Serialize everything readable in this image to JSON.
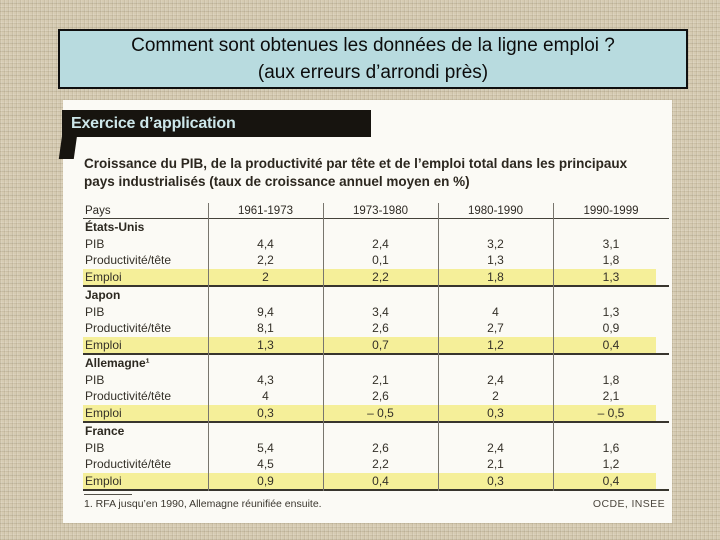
{
  "slide": {
    "title_line1": "Comment sont obtenues les données de la ligne emploi ?",
    "title_line2": "(aux erreurs d’arrondi près)"
  },
  "exercise_banner": "Exercice d’application",
  "table": {
    "caption": "Croissance du PIB, de la productivité par tête et de l’emploi total dans les principaux pays industrialisés (taux de croissance annuel moyen en %)",
    "columns": [
      "Pays",
      "1961-1973",
      "1973-1980",
      "1980-1990",
      "1990-1999"
    ],
    "highlight_color": "#f5ef99",
    "sections": [
      {
        "country": "États-Unis",
        "rows": [
          {
            "label": "PIB",
            "values": [
              "4,4",
              "2,4",
              "3,2",
              "3,1"
            ],
            "highlight": false
          },
          {
            "label": "Productivité/tête",
            "values": [
              "2,2",
              "0,1",
              "1,3",
              "1,8"
            ],
            "highlight": false
          },
          {
            "label": "Emploi",
            "values": [
              "2",
              "2,2",
              "1,8",
              "1,3"
            ],
            "highlight": true
          }
        ]
      },
      {
        "country": "Japon",
        "rows": [
          {
            "label": "PIB",
            "values": [
              "9,4",
              "3,4",
              "4",
              "1,3"
            ],
            "highlight": false
          },
          {
            "label": "Productivité/tête",
            "values": [
              "8,1",
              "2,6",
              "2,7",
              "0,9"
            ],
            "highlight": false
          },
          {
            "label": "Emploi",
            "values": [
              "1,3",
              "0,7",
              "1,2",
              "0,4"
            ],
            "highlight": true
          }
        ]
      },
      {
        "country": "Allemagne¹",
        "rows": [
          {
            "label": "PIB",
            "values": [
              "4,3",
              "2,1",
              "2,4",
              "1,8"
            ],
            "highlight": false
          },
          {
            "label": "Productivité/tête",
            "values": [
              "4",
              "2,6",
              "2",
              "2,1"
            ],
            "highlight": false
          },
          {
            "label": "Emploi",
            "values": [
              "0,3",
              "– 0,5",
              "0,3",
              "– 0,5"
            ],
            "highlight": true
          }
        ]
      },
      {
        "country": "France",
        "rows": [
          {
            "label": "PIB",
            "values": [
              "5,4",
              "2,6",
              "2,4",
              "1,6"
            ],
            "highlight": false
          },
          {
            "label": "Productivité/tête",
            "values": [
              "4,5",
              "2,2",
              "2,1",
              "1,2"
            ],
            "highlight": false
          },
          {
            "label": "Emploi",
            "values": [
              "0,9",
              "0,4",
              "0,3",
              "0,4"
            ],
            "highlight": true
          }
        ]
      }
    ],
    "footnote": "1. RFA jusqu’en 1990, Allemagne réunifiée ensuite.",
    "source": "OCDE, INSEE"
  },
  "colors": {
    "slide_background": "#d6cbb2",
    "title_box_fill": "#b8dbdf",
    "banner_fill": "#17140f",
    "banner_text": "#cde7ea",
    "scan_fill": "#fbfaf5",
    "emploi_highlight": "#f5ef99"
  }
}
